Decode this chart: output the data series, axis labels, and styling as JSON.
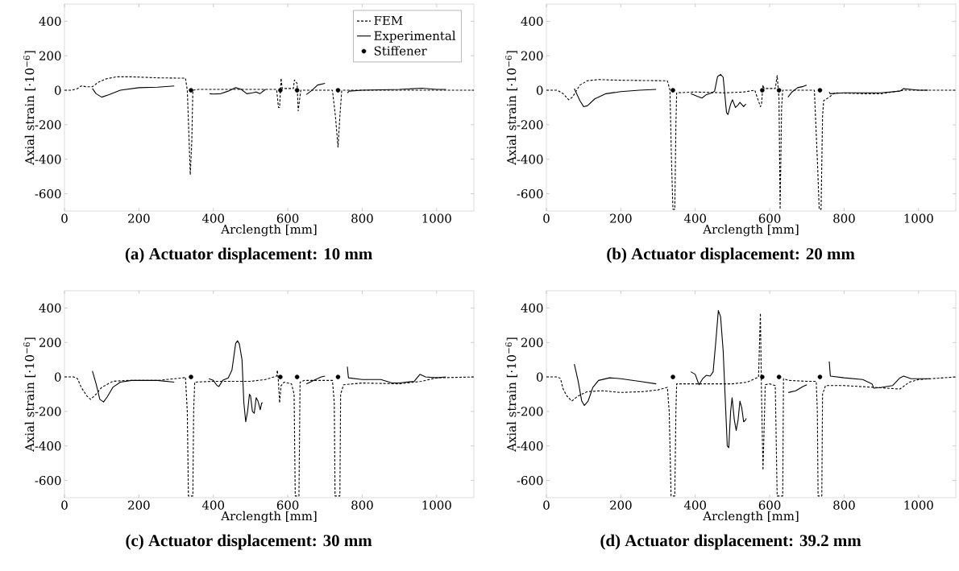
{
  "chart_data": [
    {
      "type": "line",
      "title": "(a) Actuator displacement: 10 mm",
      "xlabel": "Arclength [mm]",
      "ylabel": "Axial strain [·10$^{−6}$]",
      "xlim": [
        0,
        1100
      ],
      "ylim": [
        -700,
        500
      ],
      "xticks": [
        0,
        200,
        400,
        600,
        800,
        1000
      ],
      "yticks": [
        -600,
        -400,
        -200,
        0,
        200,
        400
      ],
      "legend": "top right",
      "grid": false,
      "series": [
        {
          "name": "FEM",
          "color": "#000000",
          "line_style": "dashed",
          "x": [
            0,
            20,
            35,
            45,
            60,
            75,
            90,
            110,
            140,
            180,
            250,
            325,
            330,
            335,
            338,
            342,
            345,
            360,
            500,
            570,
            575,
            578,
            582,
            585,
            615,
            618,
            625,
            628,
            632,
            635,
            720,
            728,
            735,
            740,
            745,
            800,
            1100
          ],
          "values": [
            0,
            0,
            10,
            25,
            20,
            20,
            45,
            65,
            78,
            78,
            72,
            70,
            0,
            -300,
            -490,
            -300,
            0,
            5,
            5,
            5,
            -100,
            -100,
            70,
            10,
            10,
            60,
            40,
            -120,
            -50,
            0,
            0,
            -150,
            -330,
            -150,
            0,
            0,
            0
          ]
        },
        {
          "name": "Experimental",
          "color": "#000000",
          "line_style": "solid",
          "x": [
            75,
            85,
            100,
            120,
            150,
            200,
            250,
            295,
            340,
            390,
            400,
            420,
            440,
            460,
            475,
            490,
            505,
            515,
            525,
            540,
            600,
            650,
            665,
            680,
            700,
            730,
            760,
            765,
            800,
            900,
            960,
            1000,
            1025
          ],
          "values": [
            10,
            -20,
            -40,
            -25,
            0,
            15,
            18,
            25,
            null,
            -20,
            -22,
            -20,
            -5,
            15,
            5,
            -20,
            -15,
            -10,
            -20,
            5,
            null,
            -25,
            0,
            30,
            40,
            null,
            -15,
            -5,
            0,
            5,
            12,
            5,
            5
          ]
        },
        {
          "name": "Stiffener",
          "type": "scatter",
          "marker": "circle",
          "color": "#000000",
          "x": [
            340,
            580,
            625,
            735
          ],
          "values": [
            0,
            0,
            0,
            0
          ]
        }
      ]
    },
    {
      "type": "line",
      "title": "(b) Actuator displacement: 20 mm",
      "xlabel": "Arclength [mm]",
      "ylabel": "Axial strain [·10$^{−6}$]",
      "xlim": [
        0,
        1100
      ],
      "ylim": [
        -700,
        500
      ],
      "xticks": [
        0,
        200,
        400,
        600,
        800,
        1000
      ],
      "yticks": [
        -600,
        -400,
        -200,
        0,
        200,
        400
      ],
      "grid": false,
      "series": [
        {
          "color": "#000000",
          "line_style": "dashed",
          "x": [
            0,
            30,
            45,
            60,
            70,
            90,
            110,
            140,
            200,
            325,
            332,
            336,
            340,
            345,
            348,
            350,
            400,
            480,
            530,
            560,
            575,
            578,
            582,
            585,
            615,
            620,
            625,
            628,
            632,
            635,
            720,
            728,
            733,
            738,
            742,
            745,
            760,
            775,
            850,
            900,
            960,
            1100
          ],
          "values": [
            0,
            0,
            -20,
            -55,
            -40,
            30,
            55,
            62,
            58,
            55,
            0,
            -400,
            -690,
            -690,
            -200,
            -15,
            -10,
            -15,
            -10,
            0,
            -95,
            -80,
            30,
            10,
            10,
            85,
            -50,
            -690,
            -100,
            0,
            0,
            -400,
            -690,
            -690,
            -150,
            -60,
            -40,
            -15,
            -20,
            -20,
            0,
            0
          ]
        },
        {
          "color": "#000000",
          "line_style": "solid",
          "x": [
            75,
            90,
            100,
            110,
            130,
            160,
            200,
            250,
            295,
            340,
            388,
            405,
            418,
            430,
            445,
            452,
            460,
            468,
            475,
            484,
            488,
            495,
            500,
            508,
            515,
            520,
            530,
            536,
            600,
            649,
            660,
            675,
            690,
            699,
            730,
            760,
            762,
            800,
            900,
            950,
            960,
            980,
            1000,
            1025
          ],
          "values": [
            10,
            -60,
            -95,
            -90,
            -50,
            -20,
            -8,
            0,
            5,
            null,
            -20,
            -35,
            -45,
            -25,
            -15,
            -5,
            80,
            92,
            75,
            -130,
            -140,
            -80,
            -55,
            -100,
            -85,
            -70,
            -95,
            -80,
            null,
            -40,
            -10,
            15,
            22,
            30,
            null,
            -10,
            -20,
            -15,
            -15,
            -5,
            10,
            5,
            0,
            0
          ]
        },
        {
          "type": "scatter",
          "marker": "circle",
          "color": "#000000",
          "x": [
            340,
            580,
            625,
            735
          ],
          "values": [
            0,
            0,
            0,
            0
          ]
        }
      ]
    },
    {
      "type": "line",
      "title": "(c) Actuator displacement: 30 mm",
      "xlabel": "Arclength [mm]",
      "ylabel": "Axial strain [·10$^{−6}$]",
      "xlim": [
        0,
        1100
      ],
      "ylim": [
        -700,
        500
      ],
      "xticks": [
        0,
        200,
        400,
        600,
        800,
        1000
      ],
      "yticks": [
        -600,
        -400,
        -200,
        0,
        200,
        400
      ],
      "grid": false,
      "series": [
        {
          "color": "#000000",
          "line_style": "dashed",
          "x": [
            0,
            25,
            35,
            45,
            60,
            70,
            85,
            100,
            130,
            170,
            250,
            320,
            325,
            330,
            333,
            345,
            347,
            350,
            400,
            500,
            540,
            570,
            572,
            575,
            578,
            582,
            590,
            610,
            617,
            620,
            630,
            633,
            645,
            720,
            725,
            727,
            740,
            742,
            750,
            800,
            900,
            960,
            1000,
            1100
          ],
          "values": [
            0,
            0,
            -10,
            -60,
            -110,
            -130,
            -100,
            -60,
            -25,
            -20,
            -20,
            -5,
            0,
            -200,
            -690,
            -690,
            -200,
            -30,
            -25,
            -25,
            -15,
            5,
            40,
            -30,
            -150,
            -50,
            -30,
            -40,
            -100,
            -690,
            -690,
            -30,
            -20,
            -20,
            -150,
            -690,
            -690,
            -100,
            -45,
            -35,
            -40,
            -25,
            -5,
            0
          ]
        },
        {
          "color": "#000000",
          "line_style": "solid",
          "x": [
            75,
            85,
            95,
            105,
            115,
            130,
            150,
            180,
            250,
            295,
            340,
            388,
            400,
            410,
            415,
            425,
            440,
            450,
            460,
            465,
            470,
            477,
            482,
            487,
            492,
            497,
            500,
            505,
            510,
            515,
            520,
            526,
            530,
            533,
            600,
            650,
            670,
            690,
            700,
            730,
            760,
            763,
            800,
            850,
            880,
            900,
            940,
            955,
            970,
            1000,
            1025
          ],
          "values": [
            35,
            -40,
            -130,
            -145,
            -115,
            -60,
            -30,
            -20,
            -20,
            -30,
            null,
            -10,
            -20,
            -50,
            -55,
            -20,
            -5,
            40,
            195,
            210,
            190,
            100,
            -150,
            -260,
            -200,
            -100,
            -110,
            -200,
            -210,
            -120,
            -140,
            -190,
            -150,
            -150,
            null,
            -40,
            -20,
            0,
            5,
            null,
            60,
            -5,
            -15,
            -15,
            -35,
            -35,
            -25,
            15,
            0,
            -5,
            0
          ]
        },
        {
          "type": "scatter",
          "marker": "circle",
          "color": "#000000",
          "x": [
            340,
            580,
            625,
            735
          ],
          "values": [
            0,
            0,
            0,
            0
          ]
        }
      ]
    },
    {
      "type": "line",
      "title": "(d) Actuator displacement: 39.2 mm",
      "xlabel": "Arclength [mm]",
      "ylabel": "Axial strain [·10$^{−6}$]",
      "xlim": [
        0,
        1100
      ],
      "ylim": [
        -700,
        500
      ],
      "xticks": [
        0,
        200,
        400,
        600,
        800,
        1000
      ],
      "yticks": [
        -600,
        -400,
        -200,
        0,
        200,
        400
      ],
      "grid": false,
      "series": [
        {
          "color": "#000000",
          "line_style": "dashed",
          "x": [
            0,
            30,
            38,
            45,
            55,
            68,
            85,
            110,
            150,
            200,
            260,
            300,
            325,
            330,
            335,
            345,
            348,
            350,
            400,
            500,
            540,
            565,
            570,
            575,
            578,
            582,
            585,
            588,
            600,
            615,
            620,
            635,
            637,
            650,
            700,
            725,
            728,
            730,
            740,
            742,
            750,
            800,
            880,
            950,
            975,
            1000,
            1100
          ],
          "values": [
            0,
            0,
            -10,
            -70,
            -110,
            -140,
            -110,
            -85,
            -80,
            -90,
            -85,
            -75,
            -60,
            -200,
            -690,
            -690,
            -200,
            -40,
            -40,
            -40,
            -30,
            -5,
            0,
            370,
            -100,
            -540,
            -300,
            -45,
            -40,
            -50,
            -690,
            -690,
            -10,
            -20,
            -25,
            -25,
            -200,
            -690,
            -690,
            -100,
            -50,
            -50,
            -60,
            -70,
            -30,
            -15,
            0
          ]
        },
        {
          "color": "#000000",
          "line_style": "solid",
          "x": [
            75,
            85,
            95,
            102,
            112,
            125,
            140,
            170,
            200,
            250,
            295,
            340,
            388,
            400,
            410,
            420,
            430,
            440,
            448,
            455,
            462,
            468,
            475,
            480,
            486,
            490,
            495,
            499,
            505,
            510,
            515,
            520,
            525,
            530,
            535,
            537,
            600,
            650,
            670,
            690,
            700,
            730,
            760,
            763,
            800,
            850,
            875,
            880,
            900,
            930,
            950,
            960,
            980,
            1000,
            1030
          ],
          "values": [
            75,
            -20,
            -140,
            -165,
            -140,
            -60,
            -20,
            -5,
            -10,
            -25,
            -40,
            null,
            30,
            15,
            -45,
            -10,
            10,
            5,
            30,
            200,
            385,
            350,
            150,
            -100,
            -400,
            -410,
            -200,
            -120,
            -250,
            -310,
            -250,
            -140,
            -180,
            -260,
            -250,
            -240,
            null,
            -90,
            -80,
            -55,
            -45,
            null,
            90,
            5,
            -5,
            -15,
            -40,
            -65,
            -60,
            -50,
            -5,
            5,
            -10,
            -10,
            -10
          ]
        },
        {
          "type": "scatter",
          "marker": "circle",
          "color": "#000000",
          "x": [
            340,
            580,
            625,
            735
          ],
          "values": [
            0,
            0,
            0,
            0
          ]
        }
      ]
    }
  ]
}
